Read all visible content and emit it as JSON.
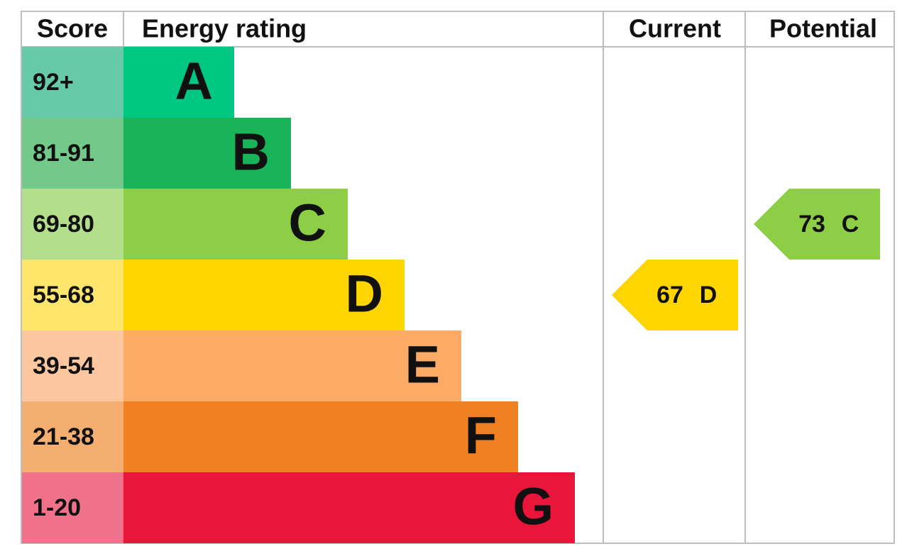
{
  "header": {
    "score": "Score",
    "energy_rating": "Energy rating",
    "current": "Current",
    "potential": "Potential"
  },
  "bands": [
    {
      "score": "92+",
      "letter": "A",
      "color": "#00c781",
      "score_color": "#66c9a8"
    },
    {
      "score": "81-91",
      "letter": "B",
      "color": "#19b459",
      "score_color": "#72c98a"
    },
    {
      "score": "69-80",
      "letter": "C",
      "color": "#8dce46",
      "score_color": "#b3de8b"
    },
    {
      "score": "55-68",
      "letter": "D",
      "color": "#ffd500",
      "score_color": "#fde66b"
    },
    {
      "score": "39-54",
      "letter": "E",
      "color": "#fcaa65",
      "score_color": "#fcc69e"
    },
    {
      "score": "21-38",
      "letter": "F",
      "color": "#ef8023",
      "score_color": "#f4ae70"
    },
    {
      "score": "1-20",
      "letter": "G",
      "color": "#e9153b",
      "score_color": "#f0728a"
    }
  ],
  "current": {
    "score": "67",
    "rating": "D"
  },
  "potential": {
    "score": "73",
    "rating": "C"
  }
}
